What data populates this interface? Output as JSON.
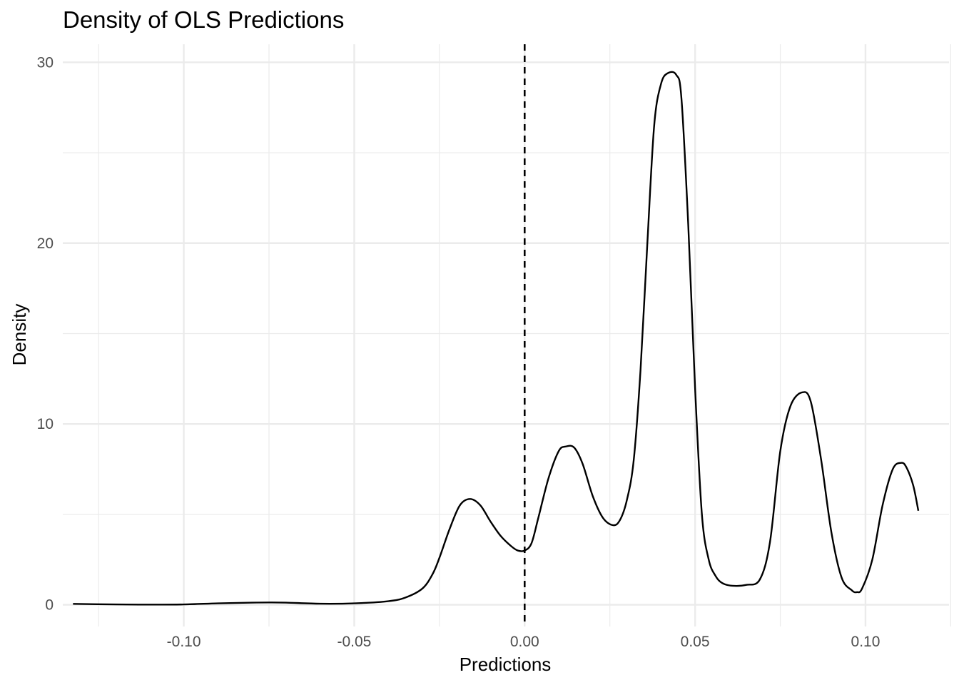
{
  "chart_data": {
    "type": "line",
    "title": "Density of OLS Predictions",
    "xlabel": "Predictions",
    "ylabel": "Density",
    "xlim": [
      -0.1355,
      0.1245
    ],
    "ylim": [
      -1.2,
      31.0
    ],
    "x_ticks": [
      {
        "value": -0.1,
        "label": "-0.10"
      },
      {
        "value": -0.05,
        "label": "-0.05"
      },
      {
        "value": 0.0,
        "label": "0.00"
      },
      {
        "value": 0.05,
        "label": "0.05"
      },
      {
        "value": 0.1,
        "label": "0.10"
      }
    ],
    "x_minor_ticks": [
      -0.125,
      -0.075,
      -0.025,
      0.025,
      0.075,
      0.125
    ],
    "y_ticks": [
      {
        "value": 0,
        "label": "0"
      },
      {
        "value": 10,
        "label": "10"
      },
      {
        "value": 20,
        "label": "20"
      },
      {
        "value": 30,
        "label": "30"
      }
    ],
    "y_minor_ticks": [
      5,
      15,
      25
    ],
    "grid": true,
    "reference_line": {
      "x": 0.0,
      "style": "dashed",
      "color": "#000000"
    },
    "series": [
      {
        "color": "#000000",
        "x": [
          -0.1325,
          -0.12,
          -0.11,
          -0.1,
          -0.09,
          -0.08,
          -0.075,
          -0.07,
          -0.06,
          -0.05,
          -0.04,
          -0.035,
          -0.03,
          -0.027,
          -0.025,
          -0.022,
          -0.019,
          -0.016,
          -0.013,
          -0.01,
          -0.007,
          -0.004,
          -0.002,
          0.0,
          0.002,
          0.004,
          0.007,
          0.01,
          0.012,
          0.0145,
          0.017,
          0.02,
          0.023,
          0.026,
          0.028,
          0.03,
          0.032,
          0.034,
          0.036,
          0.038,
          0.04,
          0.042,
          0.0445,
          0.046,
          0.048,
          0.05,
          0.052,
          0.054,
          0.056,
          0.058,
          0.061,
          0.065,
          0.069,
          0.072,
          0.075,
          0.078,
          0.0815,
          0.084,
          0.087,
          0.09,
          0.093,
          0.096,
          0.0975,
          0.099,
          0.102,
          0.105,
          0.108,
          0.1105,
          0.112,
          0.114,
          0.1155
        ],
        "y": [
          0.05,
          0.02,
          0.01,
          0.02,
          0.08,
          0.12,
          0.13,
          0.12,
          0.06,
          0.08,
          0.2,
          0.4,
          0.9,
          1.7,
          2.6,
          4.2,
          5.5,
          5.85,
          5.5,
          4.6,
          3.8,
          3.25,
          3.0,
          3.0,
          3.4,
          4.8,
          7.0,
          8.5,
          8.75,
          8.7,
          7.8,
          6.0,
          4.8,
          4.4,
          4.7,
          5.8,
          8.0,
          13.0,
          20.0,
          26.5,
          28.8,
          29.4,
          29.3,
          28.0,
          21.0,
          12.0,
          5.0,
          2.5,
          1.6,
          1.2,
          1.05,
          1.1,
          1.4,
          3.5,
          8.5,
          11.0,
          11.75,
          11.2,
          8.0,
          4.0,
          1.5,
          0.8,
          0.7,
          0.9,
          2.5,
          5.5,
          7.5,
          7.85,
          7.6,
          6.6,
          5.2
        ]
      }
    ]
  }
}
